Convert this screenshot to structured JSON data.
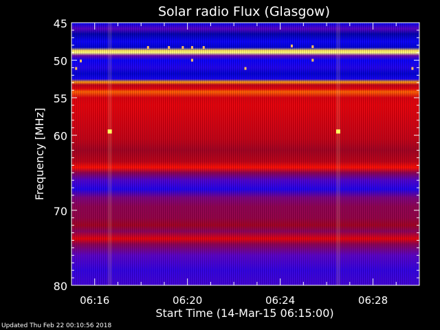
{
  "footer": {
    "updated": "Updated Thu Feb 22 00:10:56 2018"
  },
  "chart_data": {
    "type": "heatmap",
    "title": "Solar radio Flux (Glasgow)",
    "xlabel": "Start Time (14-Mar-15 06:15:00)",
    "ylabel": "Frequency [MHz]",
    "x_range": [
      "06:15:00",
      "06:30:00"
    ],
    "ylim": [
      45,
      80
    ],
    "y_inverted": true,
    "x_ticks": [
      "06:16",
      "06:20",
      "06:24",
      "06:28"
    ],
    "x_ticks_min": [
      1,
      5,
      9,
      13
    ],
    "y_ticks": [
      45,
      50,
      55,
      60,
      70,
      80
    ],
    "colormap": [
      "#000060",
      "#0000ff",
      "#6000c0",
      "#a00020",
      "#ff0000",
      "#ff9000",
      "#ffff80"
    ],
    "frequency_profile": [
      {
        "f": 45.0,
        "v": 0.15
      },
      {
        "f": 45.8,
        "v": 0.32
      },
      {
        "f": 46.5,
        "v": 0.08
      },
      {
        "f": 47.5,
        "v": 0.18
      },
      {
        "f": 48.3,
        "v": 0.12
      },
      {
        "f": 48.7,
        "v": 0.95
      },
      {
        "f": 49.0,
        "v": 1.0
      },
      {
        "f": 49.4,
        "v": 0.35
      },
      {
        "f": 50.0,
        "v": 0.18
      },
      {
        "f": 51.0,
        "v": 0.22
      },
      {
        "f": 51.8,
        "v": 0.12
      },
      {
        "f": 52.5,
        "v": 0.2
      },
      {
        "f": 52.9,
        "v": 0.85
      },
      {
        "f": 53.3,
        "v": 0.55
      },
      {
        "f": 53.8,
        "v": 0.62
      },
      {
        "f": 54.2,
        "v": 0.78
      },
      {
        "f": 55.0,
        "v": 0.6
      },
      {
        "f": 56.0,
        "v": 0.62
      },
      {
        "f": 57.5,
        "v": 0.6
      },
      {
        "f": 59.0,
        "v": 0.58
      },
      {
        "f": 60.5,
        "v": 0.56
      },
      {
        "f": 62.0,
        "v": 0.5
      },
      {
        "f": 63.5,
        "v": 0.55
      },
      {
        "f": 64.3,
        "v": 0.68
      },
      {
        "f": 65.0,
        "v": 0.45
      },
      {
        "f": 66.0,
        "v": 0.3
      },
      {
        "f": 67.2,
        "v": 0.22
      },
      {
        "f": 68.3,
        "v": 0.4
      },
      {
        "f": 69.5,
        "v": 0.45
      },
      {
        "f": 71.0,
        "v": 0.46
      },
      {
        "f": 72.0,
        "v": 0.5
      },
      {
        "f": 72.8,
        "v": 0.44
      },
      {
        "f": 73.8,
        "v": 0.62
      },
      {
        "f": 74.5,
        "v": 0.45
      },
      {
        "f": 76.0,
        "v": 0.32
      },
      {
        "f": 78.0,
        "v": 0.25
      },
      {
        "f": 80.0,
        "v": 0.28
      }
    ]
  }
}
